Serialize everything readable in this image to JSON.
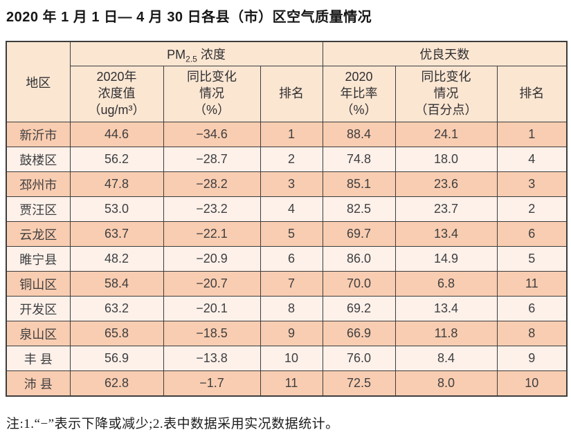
{
  "page": {
    "title": "2020 年 1 月 1 日— 4 月 30 日各县（市）区空气质量情况",
    "note": "注:1.“−”表示下降或减少;2.表中数据采用实况数据统计。"
  },
  "table": {
    "corner_header": "地区",
    "group_pm25": {
      "prefix": "PM",
      "sub": "2.5",
      "suffix": " 浓度"
    },
    "group_good_days": "优良天数",
    "subheaders": {
      "pm_value": "2020年\n浓度值\n（ug/m³）",
      "pm_change": "同比变化\n情况\n（%）",
      "pm_rank": "排名",
      "good_ratio": "2020\n年比率\n（%）",
      "good_change": "同比变化\n情况\n（百分点）",
      "good_rank": "排名"
    },
    "rows": [
      {
        "region": "新沂市",
        "pm_value": "44.6",
        "pm_change": "−34.6",
        "pm_rank": "1",
        "good_ratio": "88.4",
        "good_change": "24.1",
        "good_rank": "1"
      },
      {
        "region": "鼓楼区",
        "pm_value": "56.2",
        "pm_change": "−28.7",
        "pm_rank": "2",
        "good_ratio": "74.8",
        "good_change": "18.0",
        "good_rank": "4"
      },
      {
        "region": "邳州市",
        "pm_value": "47.8",
        "pm_change": "−28.2",
        "pm_rank": "3",
        "good_ratio": "85.1",
        "good_change": "23.6",
        "good_rank": "3"
      },
      {
        "region": "贾汪区",
        "pm_value": "53.0",
        "pm_change": "−23.2",
        "pm_rank": "4",
        "good_ratio": "82.5",
        "good_change": "23.7",
        "good_rank": "2"
      },
      {
        "region": "云龙区",
        "pm_value": "63.7",
        "pm_change": "−22.1",
        "pm_rank": "5",
        "good_ratio": "69.7",
        "good_change": "13.4",
        "good_rank": "6"
      },
      {
        "region": "睢宁县",
        "pm_value": "48.2",
        "pm_change": "−20.9",
        "pm_rank": "6",
        "good_ratio": "86.0",
        "good_change": "14.9",
        "good_rank": "5"
      },
      {
        "region": "铜山区",
        "pm_value": "58.4",
        "pm_change": "−20.7",
        "pm_rank": "7",
        "good_ratio": "70.0",
        "good_change": "6.8",
        "good_rank": "11"
      },
      {
        "region": "开发区",
        "pm_value": "63.2",
        "pm_change": "−20.1",
        "pm_rank": "8",
        "good_ratio": "69.2",
        "good_change": "13.4",
        "good_rank": "6"
      },
      {
        "region": "泉山区",
        "pm_value": "65.8",
        "pm_change": "−18.5",
        "pm_rank": "9",
        "good_ratio": "66.9",
        "good_change": "11.8",
        "good_rank": "8"
      },
      {
        "region": "丰 县",
        "pm_value": "56.9",
        "pm_change": "−13.8",
        "pm_rank": "10",
        "good_ratio": "76.0",
        "good_change": "8.4",
        "good_rank": "9"
      },
      {
        "region": "沛 县",
        "pm_value": "62.8",
        "pm_change": "−1.7",
        "pm_rank": "11",
        "good_ratio": "72.5",
        "good_change": "8.0",
        "good_rank": "10"
      }
    ]
  },
  "colors": {
    "row_odd": "#f9cdb1",
    "row_even": "#fdf1ea",
    "header_bg": "#fbe6d2",
    "border": "#3c3c3c",
    "cell_text": "#3e3e40"
  }
}
